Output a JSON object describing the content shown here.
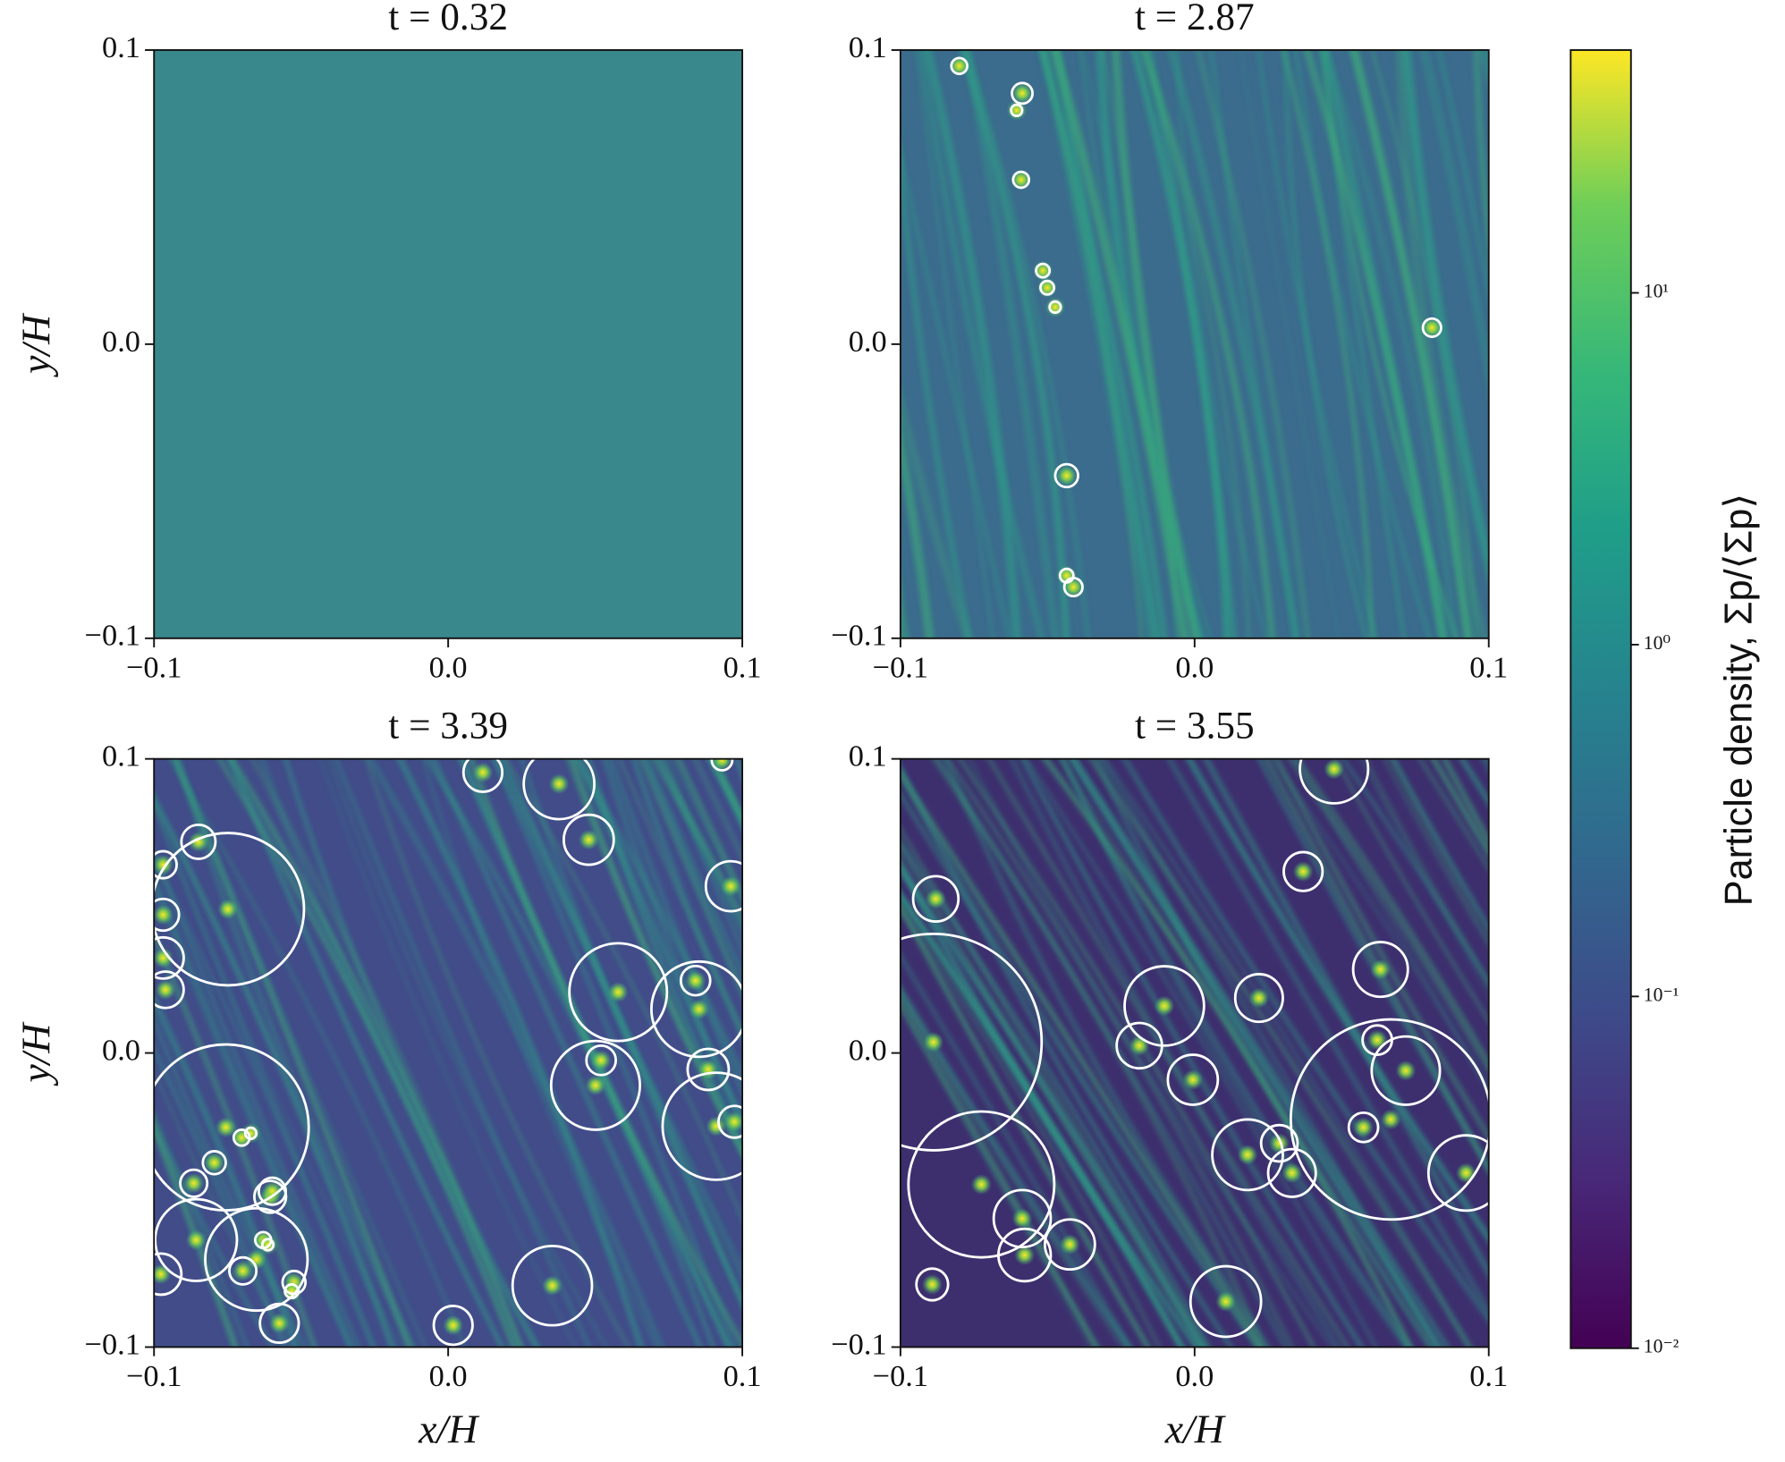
{
  "chart_data": [
    {
      "type": "density_map",
      "title": "t = 0.32",
      "xlim": [
        -0.1,
        0.1
      ],
      "ylim": [
        -0.1,
        0.1
      ],
      "xticks": [
        {
          "value": -0.1,
          "label": "−0.1"
        },
        {
          "value": 0,
          "label": "0.0"
        },
        0.1
      ],
      "yticks": [
        {
          "value": -0.1,
          "label": "−0.1"
        },
        {
          "value": 0,
          "label": "0.0"
        },
        0.1
      ],
      "ylabel": "y/H",
      "clumps": {
        "x": [],
        "y": [],
        "r": []
      }
    },
    {
      "type": "density_map",
      "title": "t = 2.87",
      "xlim": [
        -0.1,
        0.1
      ],
      "ylim": [
        -0.1,
        0.1
      ],
      "xticks": [
        {
          "value": -0.1,
          "label": "−0.1"
        },
        {
          "value": 0,
          "label": "0.0"
        },
        0.1
      ],
      "yticks": [
        {
          "value": -0.1,
          "label": "−0.1"
        },
        {
          "value": 0,
          "label": "0.0"
        },
        0.1
      ],
      "clumps": {
        "x": [
          -0.08,
          -0.0586,
          -0.0605,
          -0.059,
          -0.0516,
          -0.0501,
          -0.0474,
          0.0807,
          -0.0435,
          -0.0435,
          -0.0412
        ],
        "y": [
          0.0946,
          0.0853,
          0.0795,
          0.0559,
          0.025,
          0.0192,
          0.0126,
          0.0056,
          -0.0447,
          -0.0787,
          -0.0826
        ],
        "r": [
          0.0027,
          0.0035,
          0.0019,
          0.0027,
          0.0023,
          0.0023,
          0.0019,
          0.0031,
          0.0039,
          0.0023,
          0.0031
        ]
      }
    },
    {
      "type": "density_map",
      "title": "t = 3.39",
      "xlim": [
        -0.1,
        0.1
      ],
      "ylim": [
        -0.1,
        0.1
      ],
      "xticks": [
        {
          "value": -0.1,
          "label": "−0.1"
        },
        {
          "value": 0,
          "label": "0.0"
        },
        0.1
      ],
      "yticks": [
        {
          "value": -0.1,
          "label": "−0.1"
        },
        {
          "value": 0,
          "label": "0.0"
        },
        0.1
      ],
      "xlabel": "x/H",
      "ylabel": "y/H",
      "clumps": {
        "x": [
          -0.0849,
          -0.0749,
          -0.0969,
          -0.0969,
          -0.0969,
          -0.0961,
          -0.0756,
          -0.0671,
          -0.0702,
          -0.0795,
          -0.0865,
          -0.0605,
          -0.0598,
          -0.0857,
          -0.0652,
          -0.0629,
          -0.0613,
          -0.0698,
          -0.0524,
          -0.0532,
          -0.0977,
          -0.0574,
          0.0017,
          0.0354,
          0.0118,
          0.0377,
          0.0478,
          0.0931,
          0.0961,
          0.0578,
          0.0841,
          0.0853,
          0.0501,
          0.052,
          0.0884,
          0.0911,
          0.0973
        ],
        "y": [
          0.0718,
          0.0489,
          0.064,
          0.047,
          0.0323,
          0.0215,
          -0.0253,
          -0.0273,
          -0.0288,
          -0.0373,
          -0.0443,
          -0.0489,
          -0.047,
          -0.0636,
          -0.0702,
          -0.0636,
          -0.0652,
          -0.0741,
          -0.078,
          -0.081,
          -0.0752,
          -0.0919,
          -0.0926,
          -0.0791,
          0.0954,
          0.0915,
          0.0725,
          0.0996,
          0.0567,
          0.0207,
          0.0246,
          0.0149,
          -0.011,
          -0.0025,
          -0.0056,
          -0.0249,
          -0.0234
        ],
        "r": [
          0.0058,
          0.0259,
          0.0046,
          0.0054,
          0.007,
          0.0062,
          0.0282,
          0.0019,
          0.0027,
          0.0039,
          0.0046,
          0.0054,
          0.0046,
          0.0139,
          0.0174,
          0.0027,
          0.0019,
          0.0046,
          0.0039,
          0.0023,
          0.007,
          0.0066,
          0.0066,
          0.0135,
          0.0066,
          0.012,
          0.0085,
          0.0035,
          0.0085,
          0.0166,
          0.005,
          0.0162,
          0.0151,
          0.005,
          0.007,
          0.0182,
          0.0054
        ]
      }
    },
    {
      "type": "density_map",
      "title": "t = 3.55",
      "xlim": [
        -0.1,
        0.1
      ],
      "ylim": [
        -0.1,
        0.1
      ],
      "xticks": [
        {
          "value": -0.1,
          "label": "−0.1"
        },
        {
          "value": 0,
          "label": "0.0"
        },
        0.1
      ],
      "yticks": [
        {
          "value": -0.1,
          "label": "−0.1"
        },
        {
          "value": 0,
          "label": "0.0"
        },
        0.1
      ],
      "xlabel": "x/H",
      "clumps": {
        "x": [
          0.0474,
          0.0369,
          -0.088,
          0.0632,
          -0.0103,
          0.0219,
          -0.0188,
          -0.0006,
          -0.0888,
          0.0621,
          0.0718,
          0.0667,
          0.0574,
          0.018,
          0.0288,
          0.0331,
          0.0923,
          -0.0725,
          -0.0586,
          -0.0578,
          -0.0424,
          -0.0892,
          0.0106
        ],
        "y": [
          0.0965,
          0.0617,
          0.0524,
          0.0284,
          0.016,
          0.0187,
          0.0025,
          -0.0091,
          0.0037,
          0.0044,
          -0.006,
          -0.0226,
          -0.0253,
          -0.0346,
          -0.0307,
          -0.0408,
          -0.0408,
          -0.0447,
          -0.0563,
          -0.0687,
          -0.0651,
          -0.0787,
          -0.0845
        ],
        "r": [
          0.0116,
          0.0066,
          0.0077,
          0.0093,
          0.0135,
          0.0081,
          0.0077,
          0.0085,
          0.0368,
          0.005,
          0.0116,
          0.034,
          0.005,
          0.012,
          0.0062,
          0.0081,
          0.0128,
          0.0248,
          0.0097,
          0.0089,
          0.0085,
          0.0054,
          0.012
        ]
      }
    },
    {
      "type": "colorbar",
      "label": "Particle density, Σp/⟨Σp⟩",
      "log": true,
      "colormap": "viridis",
      "clim": [
        0.01,
        49
      ],
      "ticks": [
        {
          "value": 0.01,
          "label": "10⁻²"
        },
        {
          "value": 0.1,
          "label": "10⁻¹"
        },
        {
          "value": 1,
          "label": "10⁰"
        },
        {
          "value": 10,
          "label": "10¹"
        }
      ]
    }
  ]
}
